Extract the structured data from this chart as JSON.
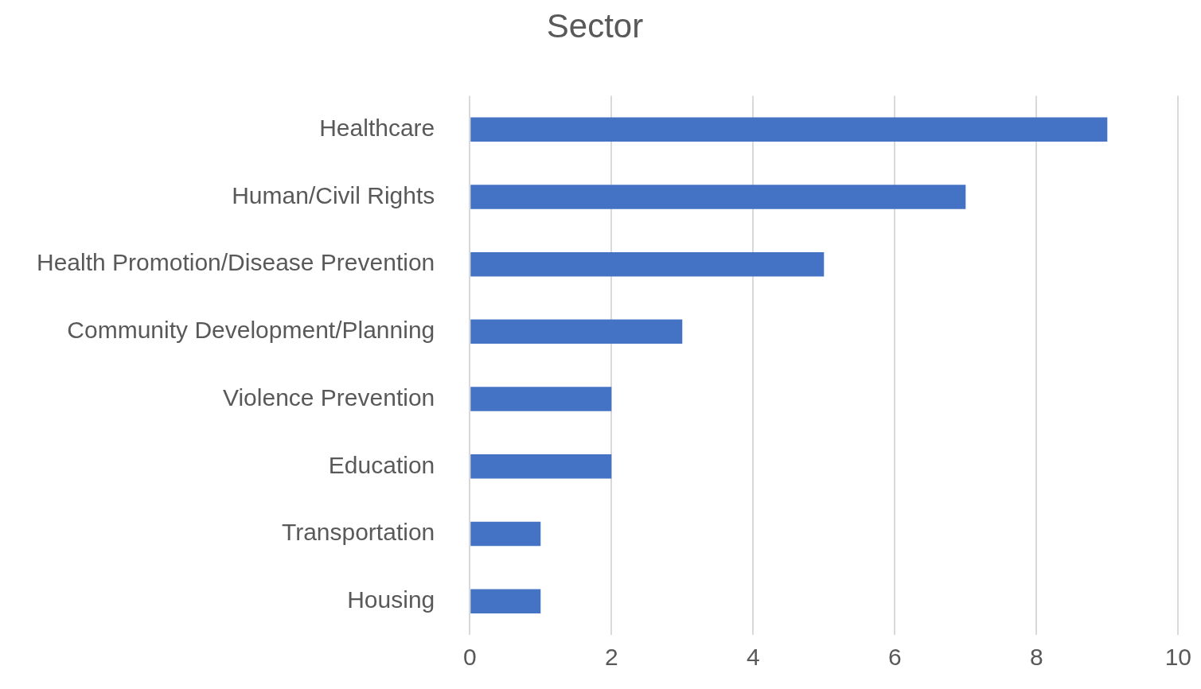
{
  "chart_data": {
    "type": "bar",
    "title": "Sector",
    "orientation": "horizontal",
    "categories": [
      "Healthcare",
      "Human/Civil Rights",
      "Health Promotion/Disease Prevention",
      "Community Development/Planning",
      "Violence Prevention",
      "Education",
      "Transportation",
      "Housing"
    ],
    "values": [
      9,
      7,
      5,
      3,
      2,
      2,
      1,
      1
    ],
    "color": "#4472c4",
    "xlim": [
      0,
      10
    ],
    "xticks": [
      0,
      2,
      4,
      6,
      8,
      10
    ],
    "grid": "x",
    "legend": false
  }
}
